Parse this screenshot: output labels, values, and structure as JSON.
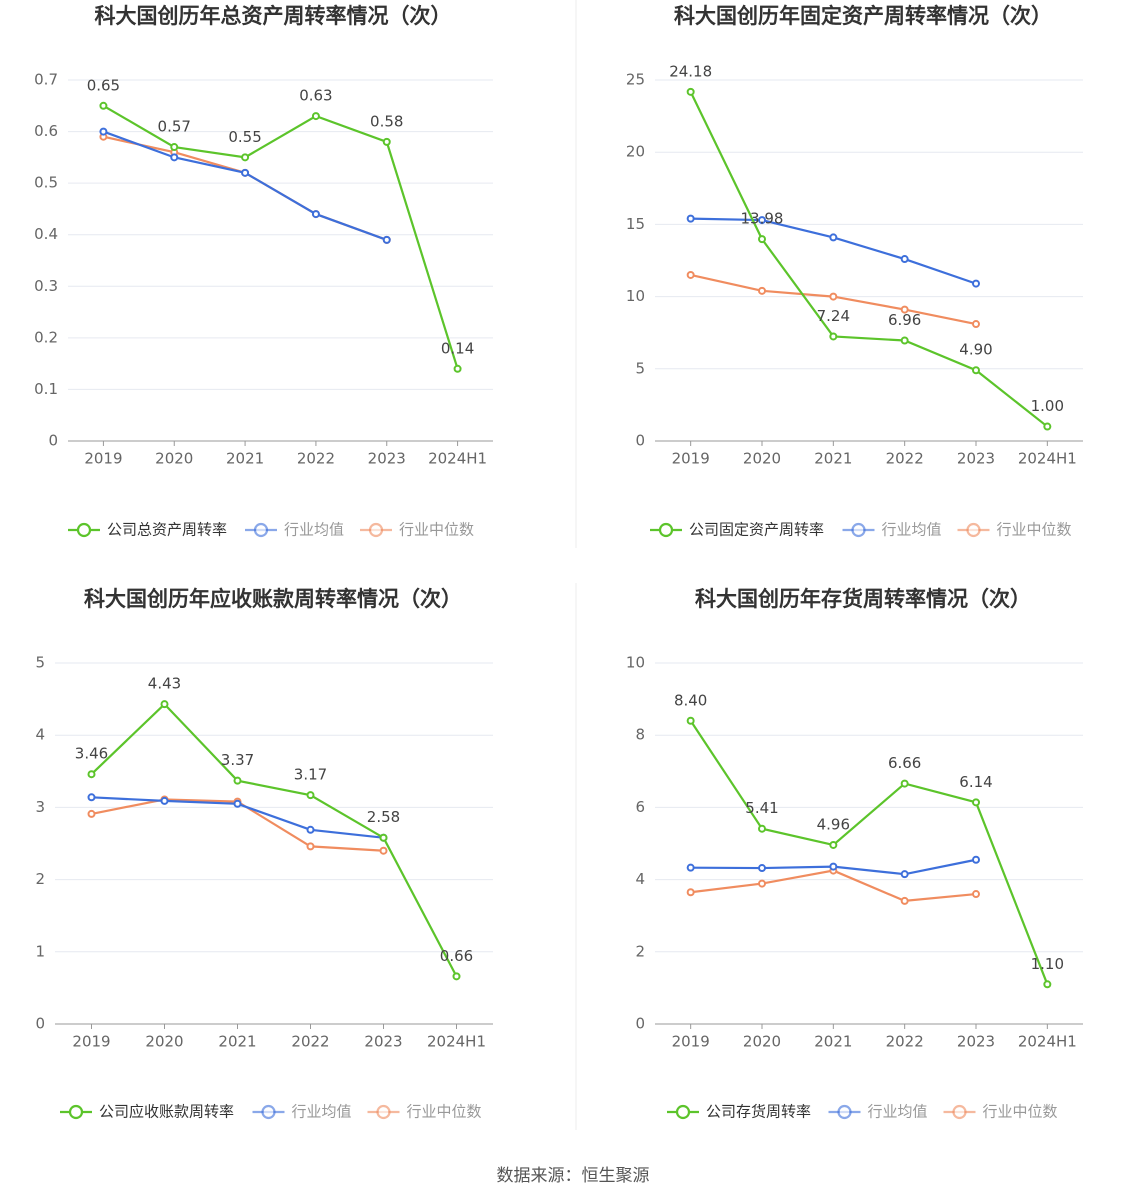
{
  "chart_data": [
    {
      "type": "line",
      "title": "科大国创历年总资产周转率情况（次）",
      "categories": [
        "2019",
        "2020",
        "2021",
        "2022",
        "2023",
        "2024H1"
      ],
      "series": [
        {
          "name": "公司总资产周转率",
          "color": "#5cc42b",
          "values": [
            0.65,
            0.57,
            0.55,
            0.63,
            0.58,
            0.14
          ],
          "value_labels": [
            "0.65",
            "0.57",
            "0.55",
            "0.63",
            "0.58",
            "0.14"
          ]
        },
        {
          "name": "行业均值",
          "color": "#3d6fdb",
          "values": [
            0.6,
            0.55,
            0.52,
            0.44,
            0.39,
            null
          ]
        },
        {
          "name": "行业中位数",
          "color": "#f08c5f",
          "values": [
            0.59,
            0.56,
            0.52,
            0.44,
            0.39,
            null
          ]
        }
      ],
      "ylim": [
        0,
        0.7
      ],
      "yticks": [
        0,
        0.1,
        0.2,
        0.3,
        0.4,
        0.5,
        0.6,
        0.7
      ],
      "grid": true
    },
    {
      "type": "line",
      "title": "科大国创历年固定资产周转率情况（次）",
      "categories": [
        "2019",
        "2020",
        "2021",
        "2022",
        "2023",
        "2024H1"
      ],
      "series": [
        {
          "name": "公司固定资产周转率",
          "color": "#5cc42b",
          "values": [
            24.18,
            13.98,
            7.24,
            6.96,
            4.9,
            1.0
          ],
          "value_labels": [
            "24.18",
            "13.98",
            "7.24",
            "6.96",
            "4.90",
            "1.00"
          ]
        },
        {
          "name": "行业均值",
          "color": "#3d6fdb",
          "values": [
            15.4,
            15.3,
            14.1,
            12.6,
            10.9,
            null
          ]
        },
        {
          "name": "行业中位数",
          "color": "#f08c5f",
          "values": [
            11.5,
            10.4,
            10.0,
            9.1,
            8.1,
            null
          ]
        }
      ],
      "ylim": [
        0,
        25
      ],
      "yticks": [
        0,
        5,
        10,
        15,
        20,
        25
      ],
      "grid": true
    },
    {
      "type": "line",
      "title": "科大国创历年应收账款周转率情况（次）",
      "categories": [
        "2019",
        "2020",
        "2021",
        "2022",
        "2023",
        "2024H1"
      ],
      "series": [
        {
          "name": "公司应收账款周转率",
          "color": "#5cc42b",
          "values": [
            3.46,
            4.43,
            3.37,
            3.17,
            2.58,
            0.66
          ],
          "value_labels": [
            "3.46",
            "4.43",
            "3.37",
            "3.17",
            "2.58",
            "0.66"
          ]
        },
        {
          "name": "行业均值",
          "color": "#3d6fdb",
          "values": [
            3.14,
            3.09,
            3.05,
            2.69,
            2.58,
            null
          ]
        },
        {
          "name": "行业中位数",
          "color": "#f08c5f",
          "values": [
            2.91,
            3.11,
            3.08,
            2.46,
            2.4,
            null
          ]
        }
      ],
      "ylim": [
        0,
        5
      ],
      "yticks": [
        0,
        1,
        2,
        3,
        4,
        5
      ],
      "grid": true
    },
    {
      "type": "line",
      "title": "科大国创历年存货周转率情况（次）",
      "categories": [
        "2019",
        "2020",
        "2021",
        "2022",
        "2023",
        "2024H1"
      ],
      "series": [
        {
          "name": "公司存货周转率",
          "color": "#5cc42b",
          "values": [
            8.4,
            5.41,
            4.96,
            6.66,
            6.14,
            1.1
          ],
          "value_labels": [
            "8.40",
            "5.41",
            "4.96",
            "6.66",
            "6.14",
            "1.10"
          ]
        },
        {
          "name": "行业均值",
          "color": "#3d6fdb",
          "values": [
            4.33,
            4.32,
            4.36,
            4.15,
            4.55,
            null
          ]
        },
        {
          "name": "行业中位数",
          "color": "#f08c5f",
          "values": [
            3.65,
            3.89,
            4.25,
            3.41,
            3.6,
            null
          ]
        }
      ],
      "ylim": [
        0,
        10
      ],
      "yticks": [
        0,
        2,
        4,
        6,
        8,
        10
      ],
      "grid": true
    }
  ],
  "source": "数据来源：恒生聚源"
}
